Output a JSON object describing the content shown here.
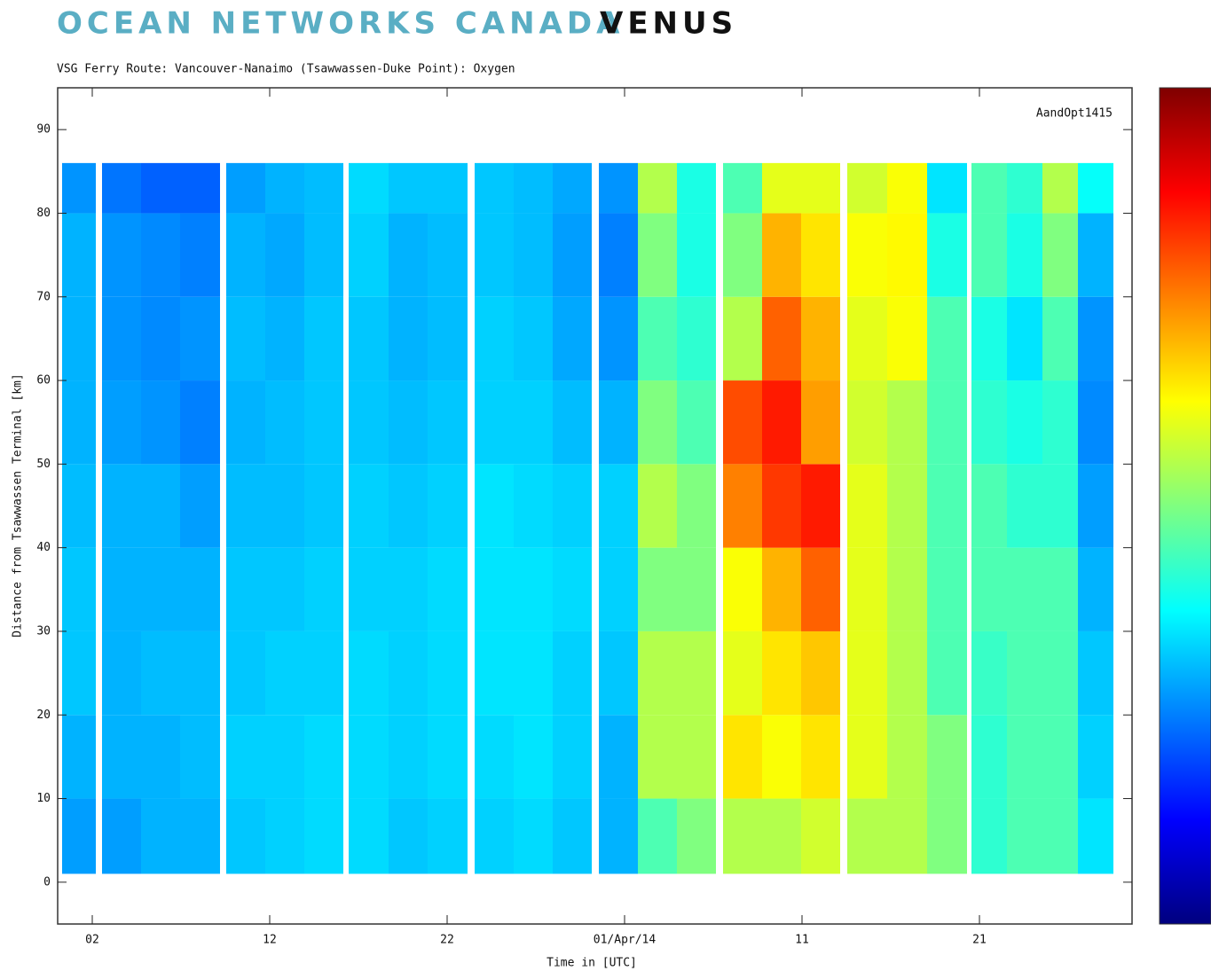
{
  "header": {
    "brand": "OCEAN NETWORKS CANADA",
    "product": "VENUS"
  },
  "chart_data": {
    "type": "heatmap",
    "title": "VSG  Ferry Route: Vancouver-Nanaimo (Tsawwassen-Duke Point):  Oxygen",
    "annotation": "AandOpt1415",
    "x_label": "Time in [UTC]",
    "y_label": "Distance from Tsawwassen Terminal [km]",
    "xlim": [
      -0.95,
      59.6
    ],
    "xticks": [
      {
        "value": 1,
        "label": "02"
      },
      {
        "value": 11,
        "label": "12"
      },
      {
        "value": 21,
        "label": "22"
      },
      {
        "value": 31,
        "label": "01/Apr/14"
      },
      {
        "value": 41,
        "label": "11"
      },
      {
        "value": 51,
        "label": "21"
      }
    ],
    "ylim": [
      -5,
      95
    ],
    "yticks": [
      0,
      10,
      20,
      30,
      40,
      50,
      60,
      70,
      80,
      90
    ],
    "y_bins": [
      1,
      10,
      20,
      30,
      40,
      50,
      60,
      70,
      80,
      86
    ],
    "zlim": [
      0,
      1
    ],
    "colorscale": [
      [
        0,
        "#00007f"
      ],
      [
        0.125,
        "#0000ff"
      ],
      [
        0.375,
        "#00ffff"
      ],
      [
        0.625,
        "#ffff00"
      ],
      [
        0.875,
        "#ff0000"
      ],
      [
        1,
        "#7f0000"
      ]
    ],
    "columns": [
      {
        "x0": -0.7,
        "x1": 1.2,
        "values": [
          0.28,
          0.3,
          0.32,
          0.32,
          0.31,
          0.3,
          0.3,
          0.3,
          0.27
        ]
      },
      {
        "x0": 1.55,
        "x1": 3.75,
        "values": [
          0.28,
          0.3,
          0.3,
          0.3,
          0.3,
          0.28,
          0.27,
          0.27,
          0.24
        ]
      },
      {
        "x0": 3.75,
        "x1": 5.95,
        "values": [
          0.3,
          0.3,
          0.31,
          0.3,
          0.3,
          0.27,
          0.26,
          0.26,
          0.22
        ]
      },
      {
        "x0": 5.95,
        "x1": 8.2,
        "values": [
          0.3,
          0.31,
          0.31,
          0.3,
          0.28,
          0.25,
          0.27,
          0.25,
          0.22
        ]
      },
      {
        "x0": 8.55,
        "x1": 10.75,
        "values": [
          0.32,
          0.33,
          0.32,
          0.32,
          0.31,
          0.3,
          0.31,
          0.3,
          0.28
        ]
      },
      {
        "x0": 10.75,
        "x1": 12.95,
        "values": [
          0.33,
          0.33,
          0.33,
          0.32,
          0.31,
          0.31,
          0.3,
          0.29,
          0.3
        ]
      },
      {
        "x0": 12.95,
        "x1": 15.15,
        "values": [
          0.34,
          0.34,
          0.33,
          0.33,
          0.32,
          0.32,
          0.32,
          0.31,
          0.31
        ]
      },
      {
        "x0": 15.45,
        "x1": 17.7,
        "values": [
          0.34,
          0.34,
          0.34,
          0.33,
          0.33,
          0.32,
          0.32,
          0.33,
          0.34
        ]
      },
      {
        "x0": 17.7,
        "x1": 19.9,
        "values": [
          0.32,
          0.33,
          0.33,
          0.33,
          0.32,
          0.31,
          0.3,
          0.3,
          0.32
        ]
      },
      {
        "x0": 19.9,
        "x1": 22.15,
        "values": [
          0.33,
          0.34,
          0.34,
          0.34,
          0.33,
          0.32,
          0.31,
          0.31,
          0.32
        ]
      },
      {
        "x0": 22.55,
        "x1": 24.75,
        "values": [
          0.33,
          0.34,
          0.35,
          0.35,
          0.35,
          0.33,
          0.33,
          0.32,
          0.32
        ]
      },
      {
        "x0": 24.75,
        "x1": 26.95,
        "values": [
          0.34,
          0.35,
          0.35,
          0.35,
          0.34,
          0.33,
          0.32,
          0.31,
          0.31
        ]
      },
      {
        "x0": 26.95,
        "x1": 29.15,
        "values": [
          0.32,
          0.33,
          0.33,
          0.34,
          0.33,
          0.31,
          0.29,
          0.28,
          0.29
        ]
      },
      {
        "x0": 29.55,
        "x1": 31.75,
        "values": [
          0.3,
          0.3,
          0.32,
          0.33,
          0.33,
          0.3,
          0.27,
          0.25,
          0.27
        ]
      },
      {
        "x0": 31.75,
        "x1": 33.95,
        "values": [
          0.45,
          0.55,
          0.55,
          0.5,
          0.55,
          0.5,
          0.45,
          0.5,
          0.55
        ]
      },
      {
        "x0": 33.95,
        "x1": 36.15,
        "values": [
          0.5,
          0.55,
          0.55,
          0.5,
          0.5,
          0.45,
          0.42,
          0.4,
          0.4
        ]
      },
      {
        "x0": 36.55,
        "x1": 38.75,
        "values": [
          0.55,
          0.65,
          0.6,
          0.62,
          0.75,
          0.8,
          0.55,
          0.5,
          0.45
        ]
      },
      {
        "x0": 38.75,
        "x1": 40.95,
        "values": [
          0.55,
          0.62,
          0.65,
          0.7,
          0.82,
          0.85,
          0.78,
          0.7,
          0.6
        ]
      },
      {
        "x0": 40.95,
        "x1": 43.15,
        "values": [
          0.58,
          0.65,
          0.68,
          0.78,
          0.85,
          0.72,
          0.7,
          0.65,
          0.6
        ]
      },
      {
        "x0": 43.55,
        "x1": 45.8,
        "values": [
          0.55,
          0.6,
          0.6,
          0.6,
          0.6,
          0.58,
          0.6,
          0.62,
          0.58
        ]
      },
      {
        "x0": 45.8,
        "x1": 48.05,
        "values": [
          0.55,
          0.55,
          0.55,
          0.55,
          0.55,
          0.55,
          0.62,
          0.63,
          0.62
        ]
      },
      {
        "x0": 48.05,
        "x1": 50.3,
        "values": [
          0.5,
          0.5,
          0.45,
          0.45,
          0.45,
          0.45,
          0.45,
          0.4,
          0.35
        ]
      },
      {
        "x0": 50.55,
        "x1": 52.55,
        "values": [
          0.42,
          0.42,
          0.43,
          0.45,
          0.45,
          0.42,
          0.4,
          0.45,
          0.45
        ]
      },
      {
        "x0": 52.55,
        "x1": 54.55,
        "values": [
          0.45,
          0.45,
          0.45,
          0.45,
          0.42,
          0.4,
          0.35,
          0.4,
          0.42
        ]
      },
      {
        "x0": 54.55,
        "x1": 56.55,
        "values": [
          0.45,
          0.45,
          0.45,
          0.45,
          0.42,
          0.42,
          0.45,
          0.5,
          0.55
        ]
      },
      {
        "x0": 56.55,
        "x1": 58.55,
        "values": [
          0.35,
          0.33,
          0.32,
          0.3,
          0.28,
          0.26,
          0.27,
          0.3,
          0.38
        ]
      }
    ]
  }
}
